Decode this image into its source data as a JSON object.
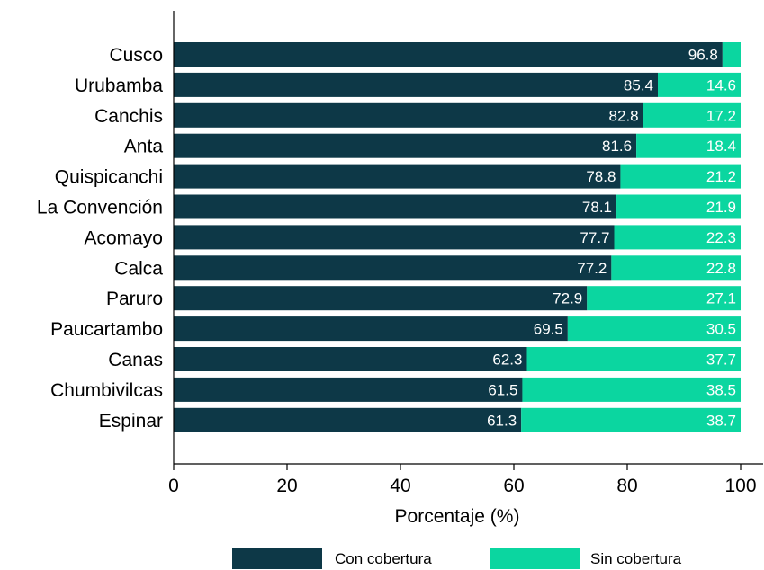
{
  "chart_data": {
    "type": "bar",
    "orientation": "horizontal",
    "stacked": true,
    "categories": [
      "Cusco",
      "Urubamba",
      "Canchis",
      "Anta",
      "Quispicanchi",
      "La Convención",
      "Acomayo",
      "Calca",
      "Paruro",
      "Paucartambo",
      "Canas",
      "Chumbivilcas",
      "Espinar"
    ],
    "series": [
      {
        "name": "Con cobertura",
        "color": "#0d3847",
        "values": [
          96.8,
          85.4,
          82.8,
          81.6,
          78.8,
          78.1,
          77.7,
          77.2,
          72.9,
          69.5,
          62.3,
          61.5,
          61.3
        ],
        "labels": [
          "96.8",
          "85.4",
          "82.8",
          "81.6",
          "78.8",
          "78.1",
          "77.7",
          "77.2",
          "72.9",
          "69.5",
          "62.3",
          "61.5",
          "61.3"
        ]
      },
      {
        "name": "Sin cobertura",
        "color": "#0bd6a0",
        "values": [
          3.2,
          14.6,
          17.2,
          18.4,
          21.2,
          21.9,
          22.3,
          22.8,
          27.1,
          30.5,
          37.7,
          38.5,
          38.7
        ],
        "labels": [
          "",
          "14.6",
          "17.2",
          "18.4",
          "21.2",
          "21.9",
          "22.3",
          "22.8",
          "27.1",
          "30.5",
          "37.7",
          "38.5",
          "38.7"
        ]
      }
    ],
    "xlabel": "Porcentaje (%)",
    "xlim": [
      0,
      100
    ],
    "xticks": [
      0,
      20,
      40,
      60,
      80,
      100
    ],
    "xtick_labels": [
      "0",
      "20",
      "40",
      "60",
      "80",
      "100"
    ],
    "grid": false,
    "legend_position": "bottom"
  }
}
